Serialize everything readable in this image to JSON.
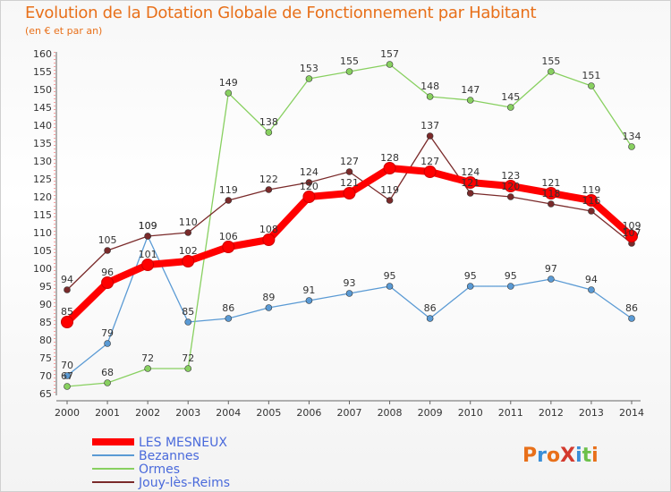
{
  "title": "Evolution de la Dotation Globale de Fonctionnement par Habitant",
  "subtitle": "(en € et par an)",
  "brand": {
    "text": "ProXiti",
    "colors": [
      "#e8701a",
      "#3a8fd8",
      "#e8701a",
      "#d33a2e",
      "#3a8fd8",
      "#6cc04a",
      "#e8701a"
    ]
  },
  "chart_data": {
    "type": "line",
    "title": "Evolution de la Dotation Globale de Fonctionnement par Habitant",
    "subtitle": "(en € et par an)",
    "x": [
      2000,
      2001,
      2002,
      2003,
      2004,
      2005,
      2006,
      2007,
      2008,
      2009,
      2010,
      2011,
      2012,
      2013,
      2014
    ],
    "ylim": [
      65,
      160
    ],
    "yticks": [
      65,
      70,
      75,
      80,
      85,
      90,
      95,
      100,
      105,
      110,
      115,
      120,
      125,
      130,
      135,
      140,
      145,
      150,
      155,
      160
    ],
    "grid": false,
    "legend_position": "bottom-left",
    "series": [
      {
        "name": "LES MESNEUX",
        "color": "#ff0000",
        "values": [
          85,
          96,
          101,
          102,
          106,
          108,
          120,
          121,
          128,
          127,
          124,
          123,
          121,
          119,
          109
        ],
        "labels": [
          "85",
          "96",
          "101",
          "102",
          "106",
          "108",
          "120",
          "121",
          "128",
          "127",
          "124",
          "123",
          "121",
          "119",
          "109"
        ]
      },
      {
        "name": "Bezannes",
        "color": "#5a9ad4",
        "values": [
          70,
          79,
          109,
          85,
          86,
          89,
          91,
          93,
          95,
          86,
          95,
          95,
          97,
          94,
          86
        ],
        "labels": [
          "70",
          "79",
          "109",
          "85",
          "86",
          "89",
          "91",
          "93",
          "95",
          "86",
          "95",
          "95",
          "97",
          "94",
          "86"
        ]
      },
      {
        "name": "Ormes",
        "color": "#88d060",
        "values": [
          67,
          68,
          72,
          72,
          149,
          138,
          153,
          155,
          157,
          148,
          147,
          145,
          155,
          151,
          134
        ],
        "labels": [
          "67",
          "68",
          "72",
          "72",
          "149",
          "138",
          "153",
          "155",
          "157",
          "148",
          "147",
          "145",
          "155",
          "151",
          "134"
        ]
      },
      {
        "name": "Jouy-lès-Reims",
        "color": "#7a2a2a",
        "values": [
          94,
          105,
          109,
          110,
          119,
          122,
          124,
          127,
          119,
          137,
          121,
          120,
          118,
          116,
          107
        ],
        "labels": [
          "94",
          "105",
          "109",
          "110",
          "119",
          "122",
          "124",
          "127",
          "119",
          "137",
          "121",
          "120",
          "118",
          "116",
          "107"
        ]
      }
    ]
  }
}
